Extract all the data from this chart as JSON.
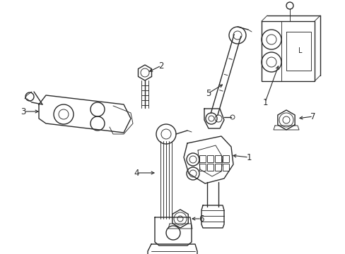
{
  "bg_color": "#ffffff",
  "line_color": "#2a2a2a",
  "lw": 1.0,
  "lw_thin": 0.65,
  "lw_thick": 1.2
}
